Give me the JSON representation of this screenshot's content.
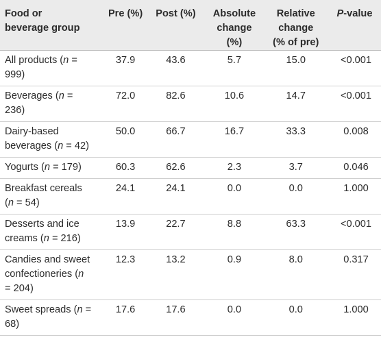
{
  "headers": {
    "food": "Food or beverage group",
    "pre": "Pre (%)",
    "post": "Post (%)",
    "abs_line1": "Absolute",
    "abs_line2": "change",
    "abs_line3": "(%)",
    "rel_line1": "Relative",
    "rel_line2": "change",
    "rel_line3": "(% of pre)",
    "p_italic": "P",
    "p_rest": "-value"
  },
  "rows": [
    {
      "food": "All products",
      "n": "999",
      "pre": "37.9",
      "post": "43.6",
      "abs": "5.7",
      "rel": "15.0",
      "p": "<0.001"
    },
    {
      "food": "Beverages",
      "n": "236",
      "pre": "72.0",
      "post": "82.6",
      "abs": "10.6",
      "rel": "14.7",
      "p": "<0.001"
    },
    {
      "food": "Dairy-based beverages",
      "n": "42",
      "pre": "50.0",
      "post": "66.7",
      "abs": "16.7",
      "rel": "33.3",
      "p": "0.008"
    },
    {
      "food": "Yogurts",
      "n": "179",
      "pre": "60.3",
      "post": "62.6",
      "abs": "2.3",
      "rel": "3.7",
      "p": "0.046"
    },
    {
      "food": "Breakfast cereals",
      "n": "54",
      "pre": "24.1",
      "post": "24.1",
      "abs": "0.0",
      "rel": "0.0",
      "p": "1.000"
    },
    {
      "food": "Desserts and ice creams",
      "n": "216",
      "pre": "13.9",
      "post": "22.7",
      "abs": "8.8",
      "rel": "63.3",
      "p": "<0.001"
    },
    {
      "food": "Candies and sweet confectioneries",
      "n": "204",
      "pre": "12.3",
      "post": "13.2",
      "abs": "0.9",
      "rel": "8.0",
      "p": "0.317"
    },
    {
      "food": "Sweet spreads",
      "n": "68",
      "pre": "17.6",
      "post": "17.6",
      "abs": "0.0",
      "rel": "0.0",
      "p": "1.000"
    }
  ]
}
